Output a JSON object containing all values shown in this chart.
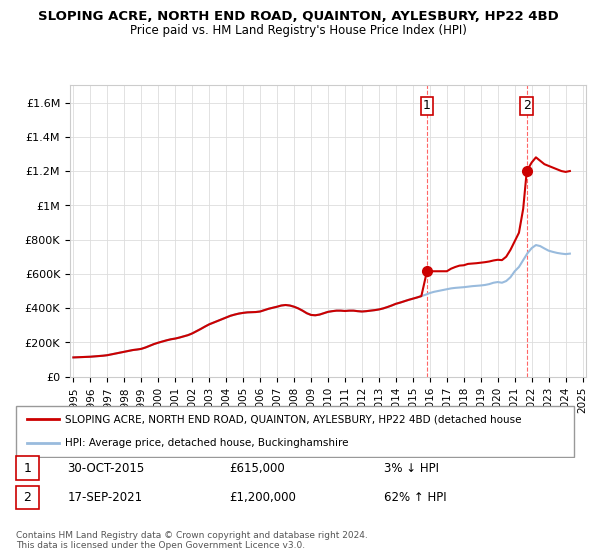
{
  "title": "SLOPING ACRE, NORTH END ROAD, QUAINTON, AYLESBURY, HP22 4BD",
  "subtitle": "Price paid vs. HM Land Registry's House Price Index (HPI)",
  "ylim": [
    0,
    1700000
  ],
  "yticks": [
    0,
    200000,
    400000,
    600000,
    800000,
    1000000,
    1200000,
    1400000,
    1600000
  ],
  "ytick_labels": [
    "£0",
    "£200K",
    "£400K",
    "£600K",
    "£800K",
    "£1M",
    "£1.2M",
    "£1.4M",
    "£1.6M"
  ],
  "sale_color": "#cc0000",
  "hpi_color": "#99bbdd",
  "sale_marker_color": "#cc0000",
  "annotation_color": "#cc0000",
  "vline_color": "#ff6666",
  "legend_sale_label": "SLOPING ACRE, NORTH END ROAD, QUAINTON, AYLESBURY, HP22 4BD (detached house",
  "legend_hpi_label": "HPI: Average price, detached house, Buckinghamshire",
  "annotation1_label": "1",
  "annotation1_date": "30-OCT-2015",
  "annotation1_price": "£615,000",
  "annotation1_hpi": "3% ↓ HPI",
  "annotation2_label": "2",
  "annotation2_date": "17-SEP-2021",
  "annotation2_price": "£1,200,000",
  "annotation2_hpi": "62% ↑ HPI",
  "copyright_text": "Contains HM Land Registry data © Crown copyright and database right 2024.\nThis data is licensed under the Open Government Licence v3.0.",
  "sale1_year": 2015.83,
  "sale1_price": 615000,
  "sale2_year": 2021.71,
  "sale2_price": 1200000,
  "vline1_year": 2015.83,
  "vline2_year": 2021.71,
  "hpi_data": {
    "years": [
      1995.0,
      1995.25,
      1995.5,
      1995.75,
      1996.0,
      1996.25,
      1996.5,
      1996.75,
      1997.0,
      1997.25,
      1997.5,
      1997.75,
      1998.0,
      1998.25,
      1998.5,
      1998.75,
      1999.0,
      1999.25,
      1999.5,
      1999.75,
      2000.0,
      2000.25,
      2000.5,
      2000.75,
      2001.0,
      2001.25,
      2001.5,
      2001.75,
      2002.0,
      2002.25,
      2002.5,
      2002.75,
      2003.0,
      2003.25,
      2003.5,
      2003.75,
      2004.0,
      2004.25,
      2004.5,
      2004.75,
      2005.0,
      2005.25,
      2005.5,
      2005.75,
      2006.0,
      2006.25,
      2006.5,
      2006.75,
      2007.0,
      2007.25,
      2007.5,
      2007.75,
      2008.0,
      2008.25,
      2008.5,
      2008.75,
      2009.0,
      2009.25,
      2009.5,
      2009.75,
      2010.0,
      2010.25,
      2010.5,
      2010.75,
      2011.0,
      2011.25,
      2011.5,
      2011.75,
      2012.0,
      2012.25,
      2012.5,
      2012.75,
      2013.0,
      2013.25,
      2013.5,
      2013.75,
      2014.0,
      2014.25,
      2014.5,
      2014.75,
      2015.0,
      2015.25,
      2015.5,
      2015.75,
      2016.0,
      2016.25,
      2016.5,
      2016.75,
      2017.0,
      2017.25,
      2017.5,
      2017.75,
      2018.0,
      2018.25,
      2018.5,
      2018.75,
      2019.0,
      2019.25,
      2019.5,
      2019.75,
      2020.0,
      2020.25,
      2020.5,
      2020.75,
      2021.0,
      2021.25,
      2021.5,
      2021.75,
      2022.0,
      2022.25,
      2022.5,
      2022.75,
      2023.0,
      2023.25,
      2023.5,
      2023.75,
      2024.0,
      2024.25
    ],
    "values": [
      112000,
      113000,
      114000,
      115000,
      116000,
      118000,
      120000,
      122000,
      125000,
      130000,
      135000,
      140000,
      145000,
      150000,
      155000,
      158000,
      162000,
      170000,
      180000,
      190000,
      198000,
      205000,
      212000,
      218000,
      222000,
      228000,
      235000,
      242000,
      252000,
      265000,
      278000,
      292000,
      305000,
      315000,
      325000,
      335000,
      345000,
      355000,
      362000,
      368000,
      372000,
      375000,
      376000,
      377000,
      380000,
      388000,
      396000,
      402000,
      408000,
      415000,
      418000,
      415000,
      408000,
      398000,
      385000,
      370000,
      360000,
      358000,
      362000,
      370000,
      378000,
      382000,
      385000,
      385000,
      383000,
      385000,
      385000,
      382000,
      380000,
      382000,
      385000,
      388000,
      392000,
      398000,
      406000,
      415000,
      425000,
      432000,
      440000,
      448000,
      455000,
      462000,
      470000,
      478000,
      488000,
      495000,
      500000,
      505000,
      510000,
      515000,
      518000,
      520000,
      522000,
      525000,
      528000,
      530000,
      532000,
      535000,
      540000,
      548000,
      552000,
      548000,
      558000,
      580000,
      615000,
      640000,
      680000,
      720000,
      750000,
      768000,
      762000,
      748000,
      735000,
      728000,
      722000,
      718000,
      715000,
      718000
    ]
  },
  "sale_data": {
    "years": [
      1995.0,
      1995.25,
      1995.5,
      1995.75,
      1996.0,
      1996.25,
      1996.5,
      1996.75,
      1997.0,
      1997.25,
      1997.5,
      1997.75,
      1998.0,
      1998.25,
      1998.5,
      1998.75,
      1999.0,
      1999.25,
      1999.5,
      1999.75,
      2000.0,
      2000.25,
      2000.5,
      2000.75,
      2001.0,
      2001.25,
      2001.5,
      2001.75,
      2002.0,
      2002.25,
      2002.5,
      2002.75,
      2003.0,
      2003.25,
      2003.5,
      2003.75,
      2004.0,
      2004.25,
      2004.5,
      2004.75,
      2005.0,
      2005.25,
      2005.5,
      2005.75,
      2006.0,
      2006.25,
      2006.5,
      2006.75,
      2007.0,
      2007.25,
      2007.5,
      2007.75,
      2008.0,
      2008.25,
      2008.5,
      2008.75,
      2009.0,
      2009.25,
      2009.5,
      2009.75,
      2010.0,
      2010.25,
      2010.5,
      2010.75,
      2011.0,
      2011.25,
      2011.5,
      2011.75,
      2012.0,
      2012.25,
      2012.5,
      2012.75,
      2013.0,
      2013.25,
      2013.5,
      2013.75,
      2014.0,
      2014.25,
      2014.5,
      2014.75,
      2015.0,
      2015.25,
      2015.5,
      2015.83,
      2016.0,
      2016.25,
      2016.5,
      2016.75,
      2017.0,
      2017.25,
      2017.5,
      2017.75,
      2018.0,
      2018.25,
      2018.5,
      2018.75,
      2019.0,
      2019.25,
      2019.5,
      2019.75,
      2020.0,
      2020.25,
      2020.5,
      2020.75,
      2021.0,
      2021.25,
      2021.5,
      2021.71,
      2022.0,
      2022.25,
      2022.5,
      2022.75,
      2023.0,
      2023.25,
      2023.5,
      2023.75,
      2024.0,
      2024.25
    ],
    "values": [
      112000,
      113000,
      114000,
      115000,
      116000,
      118000,
      120000,
      122000,
      125000,
      130000,
      135000,
      140000,
      145000,
      150000,
      155000,
      158000,
      162000,
      170000,
      180000,
      190000,
      198000,
      205000,
      212000,
      218000,
      222000,
      228000,
      235000,
      242000,
      252000,
      265000,
      278000,
      292000,
      305000,
      315000,
      325000,
      335000,
      345000,
      355000,
      362000,
      368000,
      372000,
      375000,
      376000,
      377000,
      380000,
      388000,
      396000,
      402000,
      408000,
      415000,
      418000,
      415000,
      408000,
      398000,
      385000,
      370000,
      360000,
      358000,
      362000,
      370000,
      378000,
      382000,
      385000,
      385000,
      383000,
      385000,
      385000,
      382000,
      380000,
      382000,
      385000,
      388000,
      392000,
      398000,
      406000,
      415000,
      425000,
      432000,
      440000,
      448000,
      455000,
      462000,
      470000,
      615000,
      615000,
      615000,
      615000,
      615000,
      615000,
      630000,
      640000,
      648000,
      650000,
      658000,
      660000,
      662000,
      665000,
      668000,
      672000,
      678000,
      682000,
      680000,
      700000,
      740000,
      790000,
      840000,
      980000,
      1200000,
      1250000,
      1280000,
      1260000,
      1240000,
      1230000,
      1220000,
      1210000,
      1200000,
      1195000,
      1200000
    ]
  },
  "xtick_years": [
    1995,
    1996,
    1997,
    1998,
    1999,
    2000,
    2001,
    2002,
    2003,
    2004,
    2005,
    2006,
    2007,
    2008,
    2009,
    2010,
    2011,
    2012,
    2013,
    2014,
    2015,
    2016,
    2017,
    2018,
    2019,
    2020,
    2021,
    2022,
    2023,
    2024,
    2025
  ],
  "bg_color": "#ffffff",
  "plot_bg_color": "#ffffff",
  "grid_color": "#dddddd"
}
